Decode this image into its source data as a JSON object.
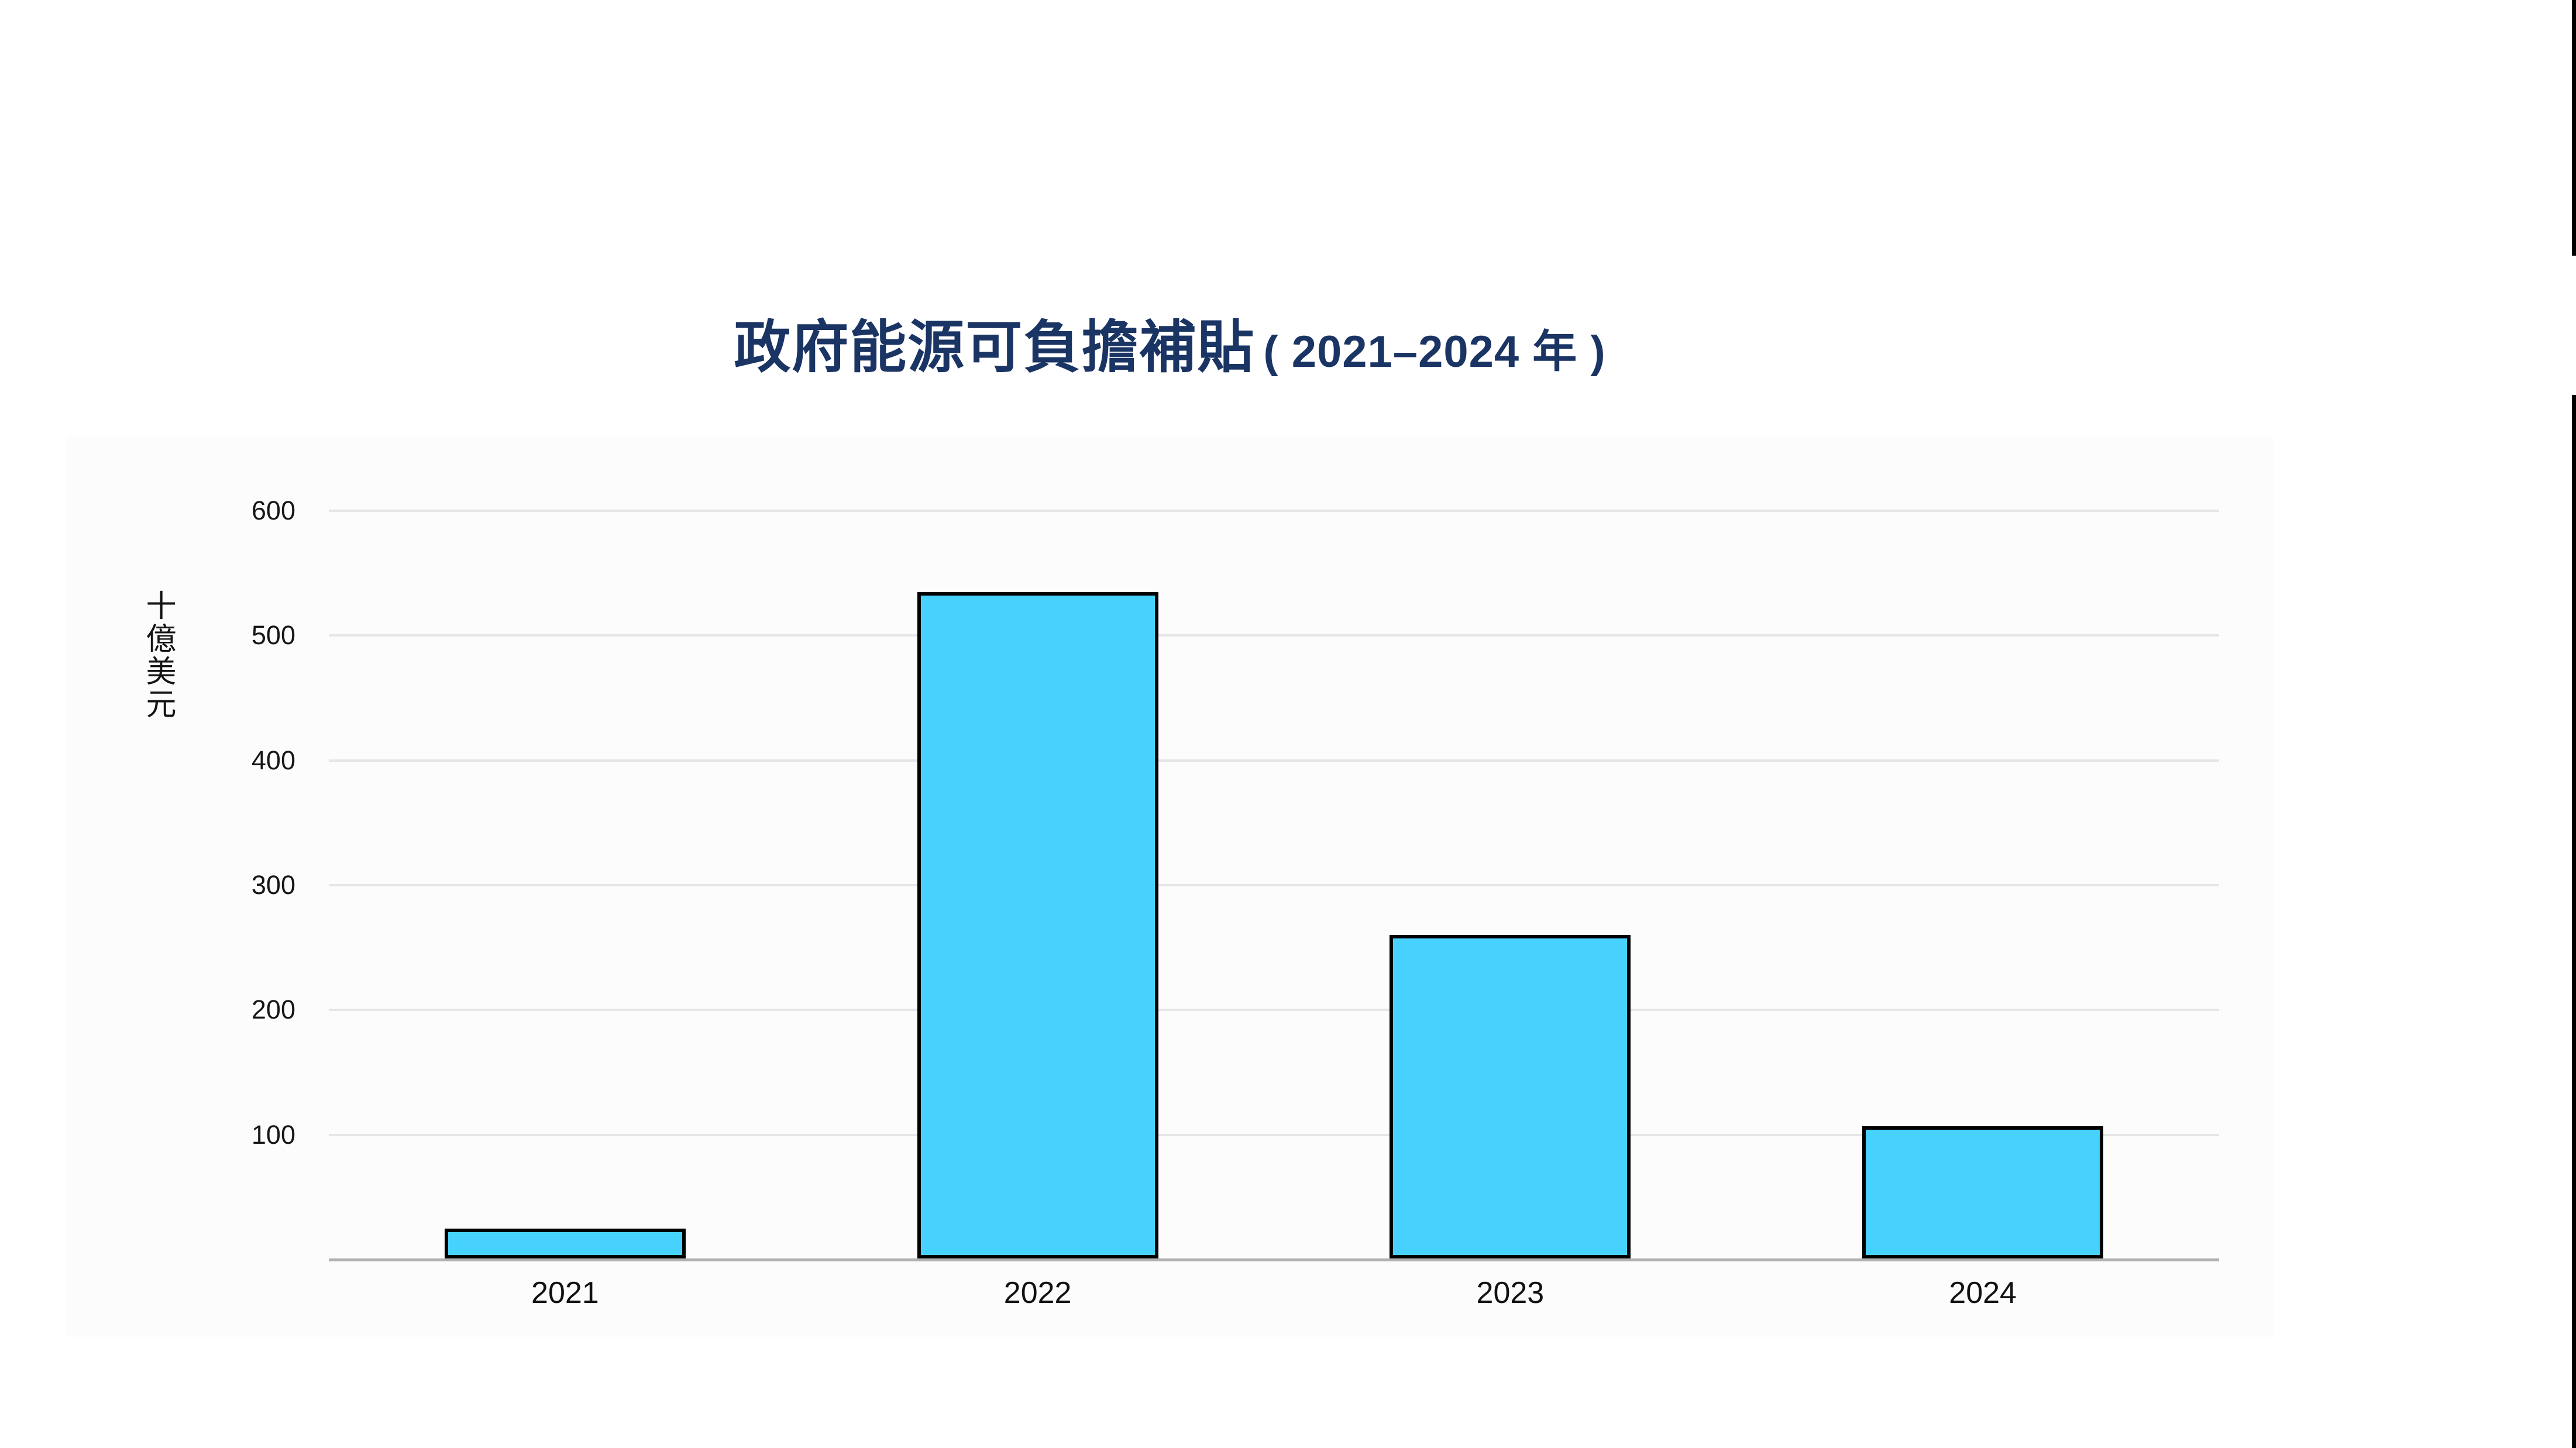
{
  "chart_data": {
    "type": "bar",
    "title_main": "政府能源可負擔補貼",
    "title_range": "( 2021–2024 年 )",
    "title_color": "#1a3464",
    "categories": [
      "2021",
      "2022",
      "2023",
      "2024"
    ],
    "values": [
      25,
      535,
      260,
      107
    ],
    "ylabel": "十億美元",
    "xlabel": "",
    "yticks": [
      100,
      200,
      300,
      400,
      500,
      600
    ],
    "ylim": [
      0,
      640
    ],
    "grid": true,
    "legend": "none",
    "bar_color": "#46d2fc",
    "bar_border_color": "#000000",
    "gridline_color": "#e6e6e6",
    "baseline_color": "#b1b1b1",
    "panel_color": "#fcfcfc",
    "tick_label_color": "#161616"
  }
}
